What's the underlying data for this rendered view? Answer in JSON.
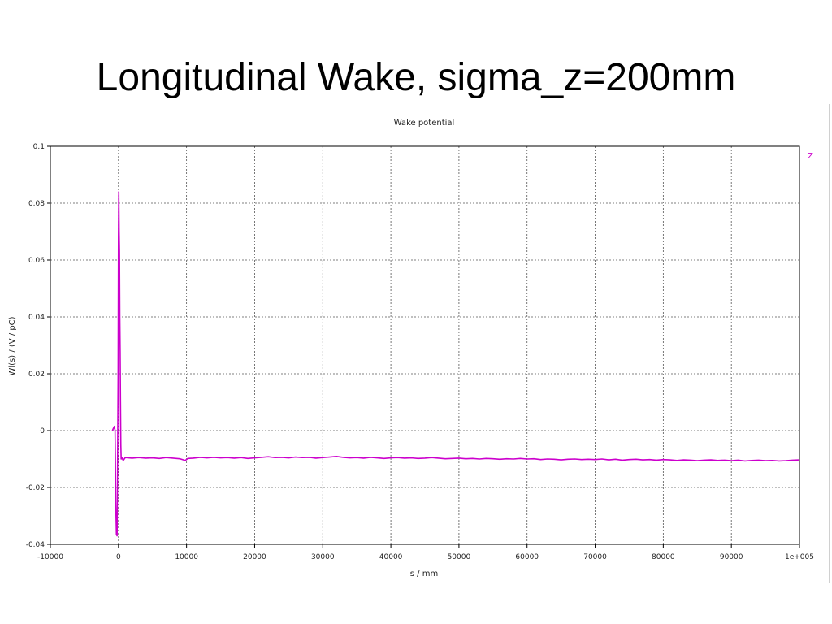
{
  "slide": {
    "title": "Longitudinal Wake, sigma_z=200mm"
  },
  "chart_data": {
    "type": "line",
    "title": "Wake potential",
    "xlabel": "s / mm",
    "ylabel": "Wl(s) / (V / pC)",
    "xlim": [
      -10000,
      100000
    ],
    "ylim": [
      -0.04,
      0.1
    ],
    "x_ticks": [
      -10000,
      0,
      10000,
      20000,
      30000,
      40000,
      50000,
      60000,
      70000,
      80000,
      90000,
      100000
    ],
    "x_tick_labels": [
      "-10000",
      "0",
      "10000",
      "20000",
      "30000",
      "40000",
      "50000",
      "60000",
      "70000",
      "80000",
      "90000",
      "1e+005"
    ],
    "y_ticks": [
      -0.04,
      -0.02,
      0,
      0.02,
      0.04,
      0.06,
      0.08,
      0.1
    ],
    "y_tick_labels": [
      "-0.04",
      "-0.02",
      "0",
      "0.02",
      "0.04",
      "0.06",
      "0.08",
      "0.1"
    ],
    "grid": true,
    "legend_position": "top-right",
    "series": [
      {
        "name": "Z",
        "color": "#cc00cc",
        "points": [
          [
            -900,
            0.0
          ],
          [
            -700,
            0.001
          ],
          [
            -600,
            0.0015
          ],
          [
            -500,
            0.0
          ],
          [
            -450,
            -0.01
          ],
          [
            -400,
            -0.025
          ],
          [
            -300,
            -0.0365
          ],
          [
            -200,
            -0.037
          ],
          [
            -150,
            -0.02
          ],
          [
            -100,
            0.0
          ],
          [
            -50,
            0.02
          ],
          [
            0,
            0.068
          ],
          [
            50,
            0.084
          ],
          [
            100,
            0.07
          ],
          [
            150,
            0.063
          ],
          [
            200,
            0.04
          ],
          [
            250,
            0.028
          ],
          [
            300,
            0.01
          ],
          [
            350,
            -0.005
          ],
          [
            400,
            -0.01
          ],
          [
            500,
            -0.0095
          ],
          [
            700,
            -0.0105
          ],
          [
            1000,
            -0.0095
          ],
          [
            2000,
            -0.0097
          ],
          [
            3000,
            -0.0095
          ],
          [
            4000,
            -0.0097
          ],
          [
            5000,
            -0.0096
          ],
          [
            6000,
            -0.0098
          ],
          [
            7000,
            -0.0095
          ],
          [
            8000,
            -0.0097
          ],
          [
            9000,
            -0.0099
          ],
          [
            9800,
            -0.0105
          ],
          [
            10200,
            -0.0098
          ],
          [
            11000,
            -0.0097
          ],
          [
            12000,
            -0.0094
          ],
          [
            13000,
            -0.0096
          ],
          [
            14000,
            -0.0094
          ],
          [
            15000,
            -0.0096
          ],
          [
            16000,
            -0.0095
          ],
          [
            17000,
            -0.0097
          ],
          [
            18000,
            -0.0095
          ],
          [
            19000,
            -0.0098
          ],
          [
            20000,
            -0.0096
          ],
          [
            21000,
            -0.0094
          ],
          [
            22000,
            -0.0092
          ],
          [
            23000,
            -0.0095
          ],
          [
            24000,
            -0.0094
          ],
          [
            25000,
            -0.0096
          ],
          [
            26000,
            -0.0093
          ],
          [
            27000,
            -0.0095
          ],
          [
            28000,
            -0.0094
          ],
          [
            29000,
            -0.0097
          ],
          [
            30000,
            -0.0095
          ],
          [
            31000,
            -0.0093
          ],
          [
            32000,
            -0.0091
          ],
          [
            33000,
            -0.0094
          ],
          [
            34000,
            -0.0096
          ],
          [
            35000,
            -0.0095
          ],
          [
            36000,
            -0.0097
          ],
          [
            37000,
            -0.0094
          ],
          [
            38000,
            -0.0096
          ],
          [
            39000,
            -0.0098
          ],
          [
            40000,
            -0.0096
          ],
          [
            41000,
            -0.0095
          ],
          [
            42000,
            -0.0097
          ],
          [
            43000,
            -0.0096
          ],
          [
            44000,
            -0.0098
          ],
          [
            45000,
            -0.0097
          ],
          [
            46000,
            -0.0095
          ],
          [
            47000,
            -0.0097
          ],
          [
            48000,
            -0.0099
          ],
          [
            49000,
            -0.0098
          ],
          [
            50000,
            -0.0097
          ],
          [
            51000,
            -0.0099
          ],
          [
            52000,
            -0.0098
          ],
          [
            53000,
            -0.01
          ],
          [
            54000,
            -0.0098
          ],
          [
            55000,
            -0.0099
          ],
          [
            56000,
            -0.0101
          ],
          [
            57000,
            -0.0099
          ],
          [
            58000,
            -0.01
          ],
          [
            59000,
            -0.0098
          ],
          [
            60000,
            -0.01
          ],
          [
            61000,
            -0.0099
          ],
          [
            62000,
            -0.0102
          ],
          [
            63000,
            -0.01
          ],
          [
            64000,
            -0.0101
          ],
          [
            65000,
            -0.0103
          ],
          [
            66000,
            -0.0101
          ],
          [
            67000,
            -0.01
          ],
          [
            68000,
            -0.0102
          ],
          [
            69000,
            -0.0101
          ],
          [
            70000,
            -0.0102
          ],
          [
            71000,
            -0.01
          ],
          [
            72000,
            -0.0103
          ],
          [
            73000,
            -0.0101
          ],
          [
            74000,
            -0.0104
          ],
          [
            75000,
            -0.0102
          ],
          [
            76000,
            -0.0101
          ],
          [
            77000,
            -0.0103
          ],
          [
            78000,
            -0.0102
          ],
          [
            79000,
            -0.0104
          ],
          [
            80000,
            -0.0102
          ],
          [
            81000,
            -0.0103
          ],
          [
            82000,
            -0.0105
          ],
          [
            83000,
            -0.0103
          ],
          [
            84000,
            -0.0104
          ],
          [
            85000,
            -0.0106
          ],
          [
            86000,
            -0.0104
          ],
          [
            87000,
            -0.0103
          ],
          [
            88000,
            -0.0105
          ],
          [
            89000,
            -0.0104
          ],
          [
            90000,
            -0.0106
          ],
          [
            91000,
            -0.0104
          ],
          [
            92000,
            -0.0107
          ],
          [
            93000,
            -0.0105
          ],
          [
            94000,
            -0.0104
          ],
          [
            95000,
            -0.0106
          ],
          [
            96000,
            -0.0105
          ],
          [
            97000,
            -0.0107
          ],
          [
            98000,
            -0.0106
          ],
          [
            99000,
            -0.0104
          ],
          [
            100000,
            -0.0103
          ]
        ]
      }
    ]
  }
}
